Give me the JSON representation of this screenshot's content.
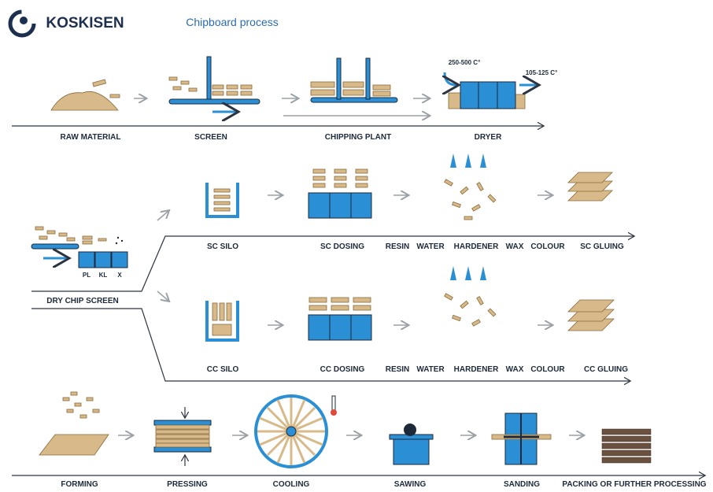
{
  "header": {
    "logo": "KOSKISEN",
    "title": "Chipboard process"
  },
  "row1": {
    "steps": [
      "RAW MATERIAL",
      "SCREEN",
      "CHIPPING PLANT",
      "DRYER"
    ],
    "dryer_in": "250-500 C°",
    "dryer_out": "105-125 C°"
  },
  "dry_chip_screen": {
    "label": "DRY CHIP SCREEN",
    "bins": [
      "PL",
      "KL",
      "X"
    ]
  },
  "sc_line": {
    "steps": [
      "SC SILO",
      "SC DOSING"
    ],
    "additives": [
      "RESIN",
      "WATER",
      "HARDENER",
      "WAX",
      "COLOUR"
    ],
    "end": "SC GLUING"
  },
  "cc_line": {
    "steps": [
      "CC SILO",
      "CC DOSING"
    ],
    "additives": [
      "RESIN",
      "WATER",
      "HARDENER",
      "WAX",
      "COLOUR"
    ],
    "end": "CC GLUING"
  },
  "row3": {
    "steps": [
      "FORMING",
      "PRESSING",
      "COOLING",
      "SAWING",
      "SANDING",
      "PACKING OR FURTHER PROCESSING"
    ]
  }
}
